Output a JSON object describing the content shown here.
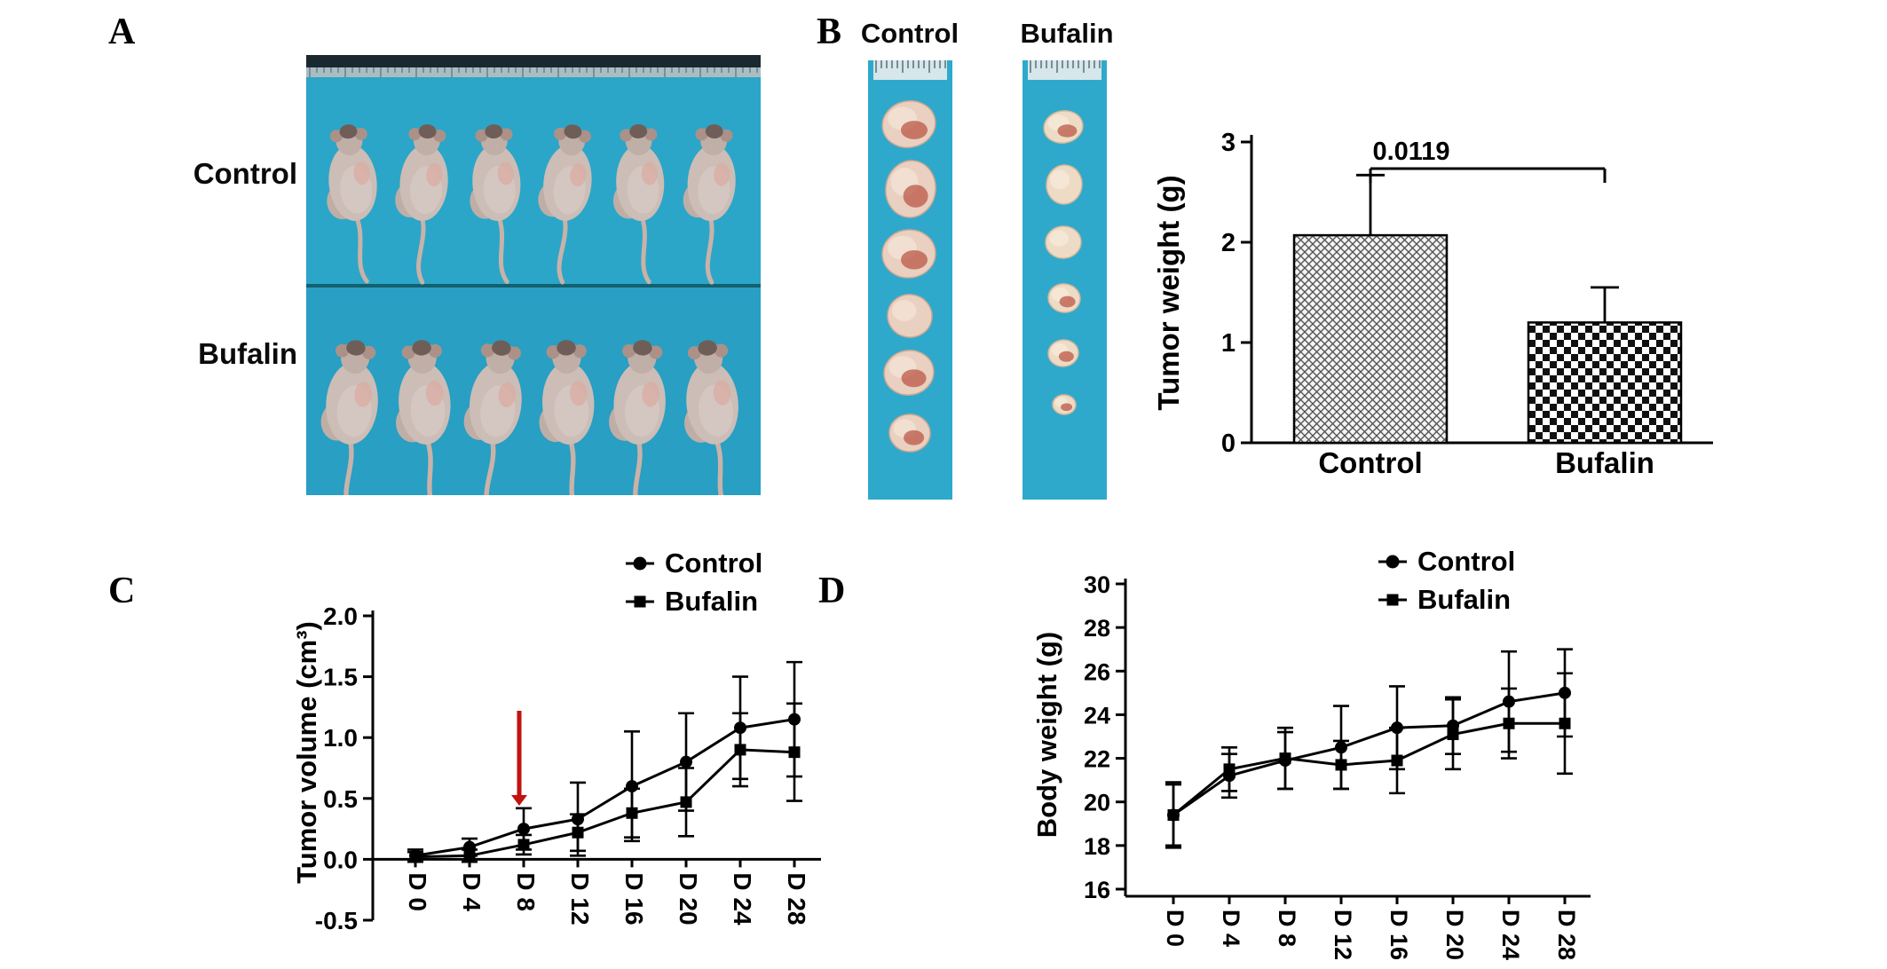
{
  "figure": {
    "panel_labels": {
      "a": "A",
      "b": "B",
      "c": "C",
      "d": "D"
    }
  },
  "panel_a": {
    "groups": [
      {
        "label": "Control"
      },
      {
        "label": "Bufalin"
      }
    ],
    "mice_per_group": 6
  },
  "panel_b": {
    "photo_headers": [
      "Control",
      "Bufalin"
    ],
    "tumors_per_group": 6
  },
  "colors": {
    "photo_blue": "#2BA6C8",
    "arrow_red": "#C0120E",
    "ink": "#000000"
  },
  "chart_data": [
    {
      "panel": "B",
      "type": "bar",
      "title": "",
      "categories": [
        "Control",
        "Bufalin"
      ],
      "values": [
        2.07,
        1.2
      ],
      "errors_up": [
        0.6,
        0.35
      ],
      "ylabel": "Tumor weight (g)",
      "ylim": [
        0,
        3
      ],
      "yticks": [
        0,
        1,
        2,
        3
      ],
      "ytick_labels": [
        "0",
        "1",
        "2",
        "3"
      ],
      "significance_label": "0.0119",
      "bar_patterns": [
        "crosshatch",
        "checkerboard"
      ]
    },
    {
      "panel": "C",
      "type": "line",
      "title": "",
      "x_labels": [
        "D 0",
        "D 4",
        "D 8",
        "D 12",
        "D 16",
        "D 20",
        "D 24",
        "D 28"
      ],
      "ylabel": "Tumor volume (cm³)",
      "ylim": [
        -0.5,
        2.0
      ],
      "x_axis_at": 0.0,
      "yticks": [
        -0.5,
        0.0,
        0.5,
        1.0,
        1.5,
        2.0
      ],
      "ytick_labels": [
        "-0.5",
        "0.0",
        "0.5",
        "1.0",
        "1.5",
        "2.0"
      ],
      "series": [
        {
          "name": "Control",
          "marker": "circle",
          "values": [
            0.03,
            0.1,
            0.25,
            0.33,
            0.6,
            0.8,
            1.08,
            1.15
          ],
          "errors": [
            0.05,
            0.07,
            0.17,
            0.3,
            0.45,
            0.4,
            0.42,
            0.47
          ]
        },
        {
          "name": "Bufalin",
          "marker": "square",
          "values": [
            0.02,
            0.03,
            0.12,
            0.22,
            0.38,
            0.47,
            0.9,
            0.88
          ],
          "errors": [
            0.04,
            0.05,
            0.08,
            0.15,
            0.2,
            0.28,
            0.3,
            0.4
          ]
        }
      ],
      "legend": [
        "Control",
        "Bufalin"
      ],
      "legend_position": "top-right",
      "annotation": {
        "type": "arrow-down",
        "color": "#C0120E",
        "at_x_label": "D 8"
      }
    },
    {
      "panel": "D",
      "type": "line",
      "title": "",
      "x_labels": [
        "D 0",
        "D 4",
        "D 8",
        "D 12",
        "D 16",
        "D 20",
        "D 24",
        "D 28"
      ],
      "ylabel": "Body weight (g)",
      "ylim": [
        16,
        30
      ],
      "yticks": [
        16,
        18,
        20,
        22,
        24,
        26,
        28,
        30
      ],
      "ytick_labels": [
        "16",
        "18",
        "20",
        "22",
        "24",
        "26",
        "28",
        "30"
      ],
      "series": [
        {
          "name": "Control",
          "marker": "circle",
          "values": [
            19.4,
            21.2,
            21.9,
            22.5,
            23.4,
            23.5,
            24.6,
            25.0
          ],
          "errors": [
            1.4,
            1.0,
            1.3,
            1.9,
            1.9,
            1.3,
            2.3,
            2.0
          ]
        },
        {
          "name": "Bufalin",
          "marker": "square",
          "values": [
            19.4,
            21.5,
            22.0,
            21.7,
            21.9,
            23.1,
            23.6,
            23.6
          ],
          "errors": [
            1.5,
            1.0,
            1.4,
            1.1,
            1.5,
            1.6,
            1.6,
            2.3
          ]
        }
      ],
      "legend": [
        "Control",
        "Bufalin"
      ],
      "legend_position": "top-right"
    }
  ]
}
